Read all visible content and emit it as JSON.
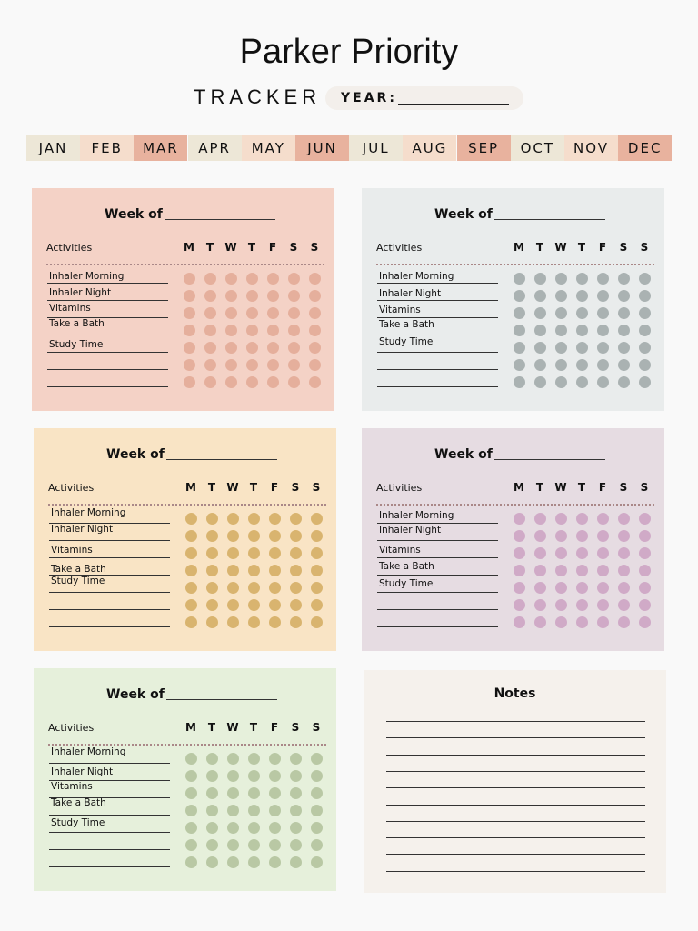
{
  "header": {
    "title": "Parker Priority",
    "subtitle": "TRACKER",
    "year_label": "YEAR:"
  },
  "months": [
    "JAN",
    "FEB",
    "MAR",
    "APR",
    "MAY",
    "JUN",
    "JUL",
    "AUG",
    "SEP",
    "OCT",
    "NOV",
    "DEC"
  ],
  "weeks": [
    {
      "heading": "Week of",
      "activities_label": "Activities",
      "days": [
        "M",
        "T",
        "W",
        "T",
        "F",
        "S",
        "S"
      ],
      "activities": [
        "Inhaler Morning",
        "Inhaler Night",
        "Vitamins",
        "Take a Bath",
        "Study Time"
      ],
      "color": "#f4d2c6",
      "dot_color": "#e5af9c"
    },
    {
      "heading": "Week of",
      "activities_label": "Activities",
      "days": [
        "M",
        "T",
        "W",
        "T",
        "F",
        "S",
        "S"
      ],
      "activities": [
        "Inhaler Morning",
        "Inhaler Night",
        "Vitamins",
        "Take a Bath",
        "Study Time"
      ],
      "color": "#e9ecec",
      "dot_color": "#aab2b2"
    },
    {
      "heading": "Week of",
      "activities_label": "Activities",
      "days": [
        "M",
        "T",
        "W",
        "T",
        "F",
        "S",
        "S"
      ],
      "activities": [
        "Inhaler Morning",
        "Inhaler Night",
        "Vitamins",
        "Take a Bath",
        "Study Time"
      ],
      "color": "#f9e4c5",
      "dot_color": "#d9b46f"
    },
    {
      "heading": "Week of",
      "activities_label": "Activities",
      "days": [
        "M",
        "T",
        "W",
        "T",
        "F",
        "S",
        "S"
      ],
      "activities": [
        "Inhaler Morning",
        "Inhaler Night",
        "Vitamins",
        "Take a Bath",
        "Study Time"
      ],
      "color": "#e6dce2",
      "dot_color": "#d0aac7"
    },
    {
      "heading": "Week of",
      "activities_label": "Activities",
      "days": [
        "M",
        "T",
        "W",
        "T",
        "F",
        "S",
        "S"
      ],
      "activities": [
        "Inhaler Morning",
        "Inhaler Night",
        "Vitamins",
        "Take a Bath",
        "Study Time"
      ],
      "color": "#e6f0db",
      "dot_color": "#b9c8a4"
    }
  ],
  "notes": {
    "heading": "Notes",
    "color": "#f5f1ec"
  }
}
